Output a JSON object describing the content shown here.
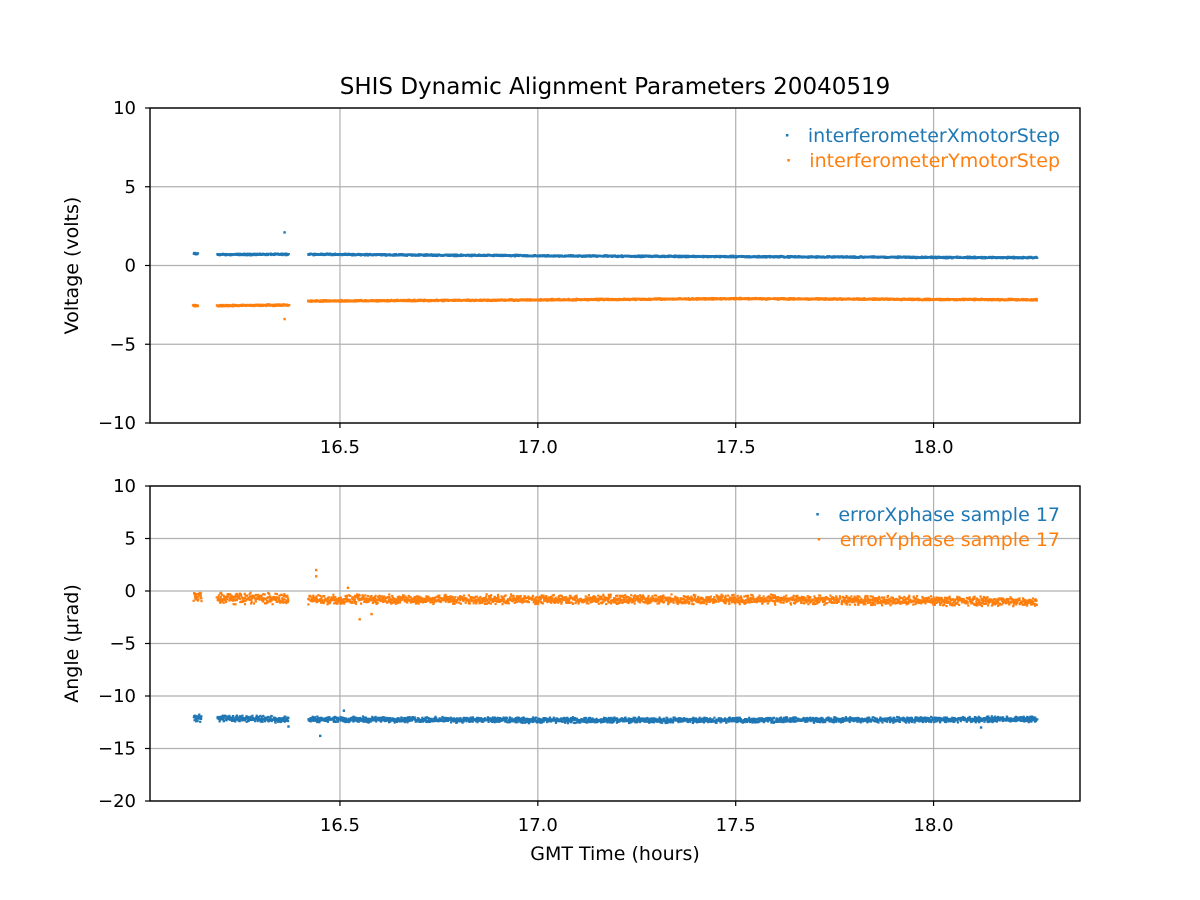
{
  "figure": {
    "title": "SHIS Dynamic Alignment Parameters 20040519",
    "xlabel": "GMT Time (hours)"
  },
  "colors": {
    "series1": "#1f77b4",
    "series2": "#ff7f0e",
    "grid": "#b0b0b0"
  },
  "chart_data": [
    {
      "type": "scatter",
      "title": "SHIS Dynamic Alignment Parameters 20040519",
      "xlabel": "",
      "ylabel": "Voltage (volts)",
      "xlim": [
        16.02,
        18.37
      ],
      "ylim": [
        -10,
        10
      ],
      "xticks": [
        16.5,
        17.0,
        17.5,
        18.0
      ],
      "xtick_labels": [
        "16.5",
        "17.0",
        "17.5",
        "18.0"
      ],
      "yticks": [
        10,
        5,
        0,
        -5,
        -10
      ],
      "ytick_labels": [
        "10",
        "5",
        "0",
        "−5",
        "−10"
      ],
      "grid": true,
      "legend_position": "top-right",
      "series": [
        {
          "name": "interferometerXmotorStep",
          "segments": [
            {
              "x": [
                16.13,
                16.14
              ],
              "y": [
                0.75,
                0.75
              ],
              "spread": 0.15
            },
            {
              "x": [
                16.19,
                16.37
              ],
              "y": [
                0.7,
                0.72
              ],
              "spread": 0.12
            },
            {
              "x": [
                16.42,
                17.0
              ],
              "y": [
                0.72,
                0.62
              ],
              "spread": 0.12
            },
            {
              "x": [
                17.0,
                17.5
              ],
              "y": [
                0.62,
                0.57
              ],
              "spread": 0.12
            },
            {
              "x": [
                17.5,
                18.26
              ],
              "y": [
                0.57,
                0.5
              ],
              "spread": 0.12
            }
          ],
          "outliers": [
            {
              "x": 16.36,
              "y": 2.1
            }
          ]
        },
        {
          "name": "interferometerYmotorStep",
          "segments": [
            {
              "x": [
                16.13,
                16.14
              ],
              "y": [
                -2.55,
                -2.55
              ],
              "spread": 0.15
            },
            {
              "x": [
                16.19,
                16.37
              ],
              "y": [
                -2.55,
                -2.5
              ],
              "spread": 0.12
            },
            {
              "x": [
                16.42,
                17.0
              ],
              "y": [
                -2.25,
                -2.18
              ],
              "spread": 0.12
            },
            {
              "x": [
                17.0,
                17.5
              ],
              "y": [
                -2.18,
                -2.1
              ],
              "spread": 0.12
            },
            {
              "x": [
                17.5,
                18.26
              ],
              "y": [
                -2.1,
                -2.17
              ],
              "spread": 0.12
            }
          ],
          "outliers": [
            {
              "x": 16.36,
              "y": -3.4
            }
          ]
        }
      ]
    },
    {
      "type": "scatter",
      "title": "",
      "xlabel": "GMT Time (hours)",
      "ylabel": "Angle (μrad)",
      "xlim": [
        16.02,
        18.37
      ],
      "ylim": [
        -20,
        10
      ],
      "xticks": [
        16.5,
        17.0,
        17.5,
        18.0
      ],
      "xtick_labels": [
        "16.5",
        "17.0",
        "17.5",
        "18.0"
      ],
      "yticks": [
        10,
        5,
        0,
        -5,
        -10,
        -15,
        -20
      ],
      "ytick_labels": [
        "10",
        "5",
        "0",
        "−5",
        "−10",
        "−15",
        "−20"
      ],
      "grid": true,
      "legend_position": "top-right",
      "series": [
        {
          "name": "errorXphase sample 17",
          "segments": [
            {
              "x": [
                16.13,
                16.15
              ],
              "y": [
                -12.1,
                -12.1
              ],
              "spread": 0.8
            },
            {
              "x": [
                16.19,
                16.37
              ],
              "y": [
                -12.1,
                -12.2
              ],
              "spread": 0.7
            },
            {
              "x": [
                16.42,
                17.0
              ],
              "y": [
                -12.2,
                -12.3
              ],
              "spread": 0.6
            },
            {
              "x": [
                17.0,
                17.5
              ],
              "y": [
                -12.3,
                -12.3
              ],
              "spread": 0.6
            },
            {
              "x": [
                17.5,
                18.26
              ],
              "y": [
                -12.3,
                -12.2
              ],
              "spread": 0.6
            }
          ],
          "outliers": [
            {
              "x": 16.37,
              "y": -12.9
            },
            {
              "x": 16.45,
              "y": -13.8
            },
            {
              "x": 16.51,
              "y": -11.4
            },
            {
              "x": 18.12,
              "y": -13.0
            }
          ]
        },
        {
          "name": "errorYphase sample 17",
          "segments": [
            {
              "x": [
                16.13,
                16.15
              ],
              "y": [
                -0.6,
                -0.6
              ],
              "spread": 1.4
            },
            {
              "x": [
                16.19,
                16.37
              ],
              "y": [
                -0.7,
                -0.7
              ],
              "spread": 1.2
            },
            {
              "x": [
                16.42,
                17.0
              ],
              "y": [
                -0.8,
                -0.8
              ],
              "spread": 1.0
            },
            {
              "x": [
                17.0,
                17.5
              ],
              "y": [
                -0.8,
                -0.8
              ],
              "spread": 1.0
            },
            {
              "x": [
                17.5,
                18.26
              ],
              "y": [
                -0.8,
                -1.0
              ],
              "spread": 1.0
            }
          ],
          "outliers": [
            {
              "x": 16.44,
              "y": 2.0
            },
            {
              "x": 16.44,
              "y": 1.4
            },
            {
              "x": 16.52,
              "y": 0.3
            },
            {
              "x": 16.55,
              "y": -2.7
            },
            {
              "x": 16.58,
              "y": -2.2
            }
          ]
        }
      ]
    }
  ]
}
